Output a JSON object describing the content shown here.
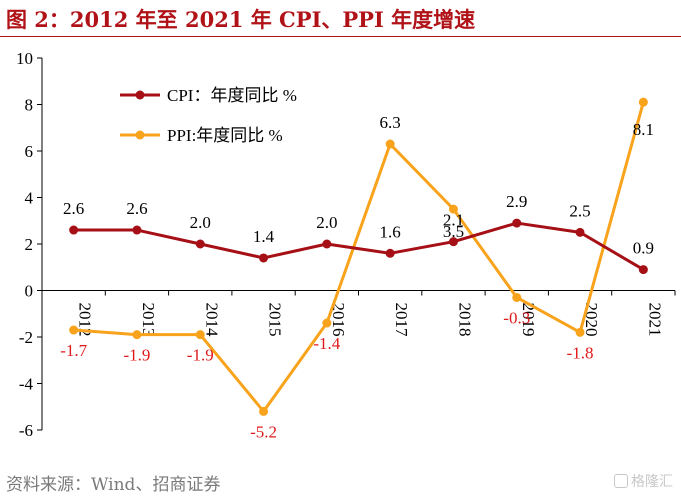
{
  "title": "图 2：2012 年至 2021 年 CPI、PPI 年度增速",
  "source": "资料来源：Wind、招商证券",
  "watermark": "格隆汇",
  "colors": {
    "cpi": "#a50f15",
    "ppi": "#f8a31b",
    "negative_label": "#e0191b",
    "axis": "#000000",
    "title": "#b01218"
  },
  "chart_data": {
    "type": "line",
    "categories": [
      "2012",
      "2013",
      "2014",
      "2015",
      "2016",
      "2017",
      "2018",
      "2019",
      "2020",
      "2021"
    ],
    "ylim": [
      -6,
      10
    ],
    "yticks": [
      "-6",
      "-4",
      "-2",
      "0",
      "2",
      "4",
      "6",
      "8",
      "10"
    ],
    "legend_placement": "top-left",
    "grid": false,
    "series": [
      {
        "name": "CPI：年度同比 %",
        "values": [
          2.6,
          2.6,
          2.0,
          1.4,
          2.0,
          1.6,
          2.1,
          2.9,
          2.5,
          0.9
        ],
        "labels": [
          "2.6",
          "2.6",
          "2.0",
          "1.4",
          "2.0",
          "1.6",
          "2.1",
          "2.9",
          "2.5",
          "0.9"
        ]
      },
      {
        "name": "PPI:年度同比 %",
        "values": [
          -1.7,
          -1.9,
          -1.9,
          -5.2,
          -1.4,
          6.3,
          3.5,
          -0.3,
          -1.8,
          8.1
        ],
        "labels": [
          "-1.7",
          "-1.9",
          "-1.9",
          "-5.2",
          "-1.4",
          "6.3",
          "3.5",
          "-0.3",
          "-1.8",
          "8.1"
        ]
      }
    ]
  }
}
